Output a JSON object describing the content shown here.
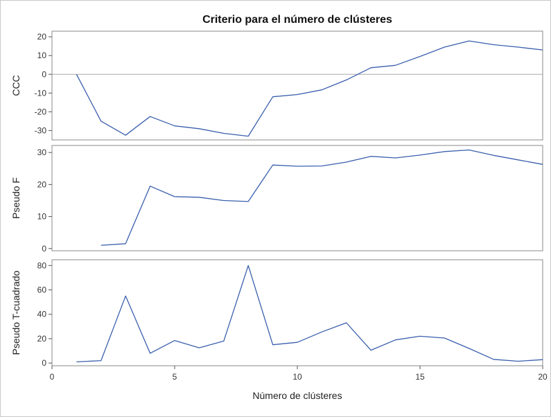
{
  "chart_data": {
    "type": "line",
    "title": "Criterio para el número de clústeres",
    "xlabel": "Número de clústeres",
    "xlim": [
      0,
      20
    ],
    "xticks": [
      0,
      5,
      10,
      15,
      20
    ],
    "line_color": "#3A5FAD",
    "panels": [
      {
        "ylabel": "CCC",
        "ylim": [
          -35,
          23
        ],
        "yticks": [
          20,
          10,
          0,
          -10,
          -20,
          -30
        ],
        "reference_line": 0,
        "x": [
          1,
          2,
          3,
          4,
          5,
          6,
          7,
          8,
          9,
          10,
          11,
          12,
          13,
          14,
          15,
          16,
          17,
          18,
          19,
          20
        ],
        "values": [
          0,
          -25,
          -32.5,
          -22.5,
          -27.5,
          -29,
          -31.5,
          -33,
          -12,
          -10.8,
          -8.3,
          -3,
          3.5,
          4.8,
          9.5,
          14.5,
          17.8,
          15.8,
          14.5,
          13
        ]
      },
      {
        "ylabel": "Pseudo F",
        "ylim": [
          -0.7,
          32.2
        ],
        "yticks": [
          30,
          20,
          10,
          0
        ],
        "x": [
          2,
          3,
          4,
          5,
          6,
          7,
          8,
          9,
          10,
          11,
          12,
          13,
          14,
          15,
          16,
          17,
          18,
          19,
          20
        ],
        "values": [
          1,
          1.5,
          19.5,
          16.2,
          16,
          15,
          14.7,
          26.1,
          25.7,
          25.8,
          27,
          28.8,
          28.3,
          29.2,
          30.3,
          30.8,
          29.1,
          27.7,
          26.3
        ]
      },
      {
        "ylabel": "Pseudo T-cuadrado",
        "ylim": [
          -2.2,
          84.7
        ],
        "yticks": [
          80,
          60,
          40,
          20,
          0
        ],
        "x": [
          1,
          2,
          3,
          4,
          5,
          6,
          7,
          8,
          9,
          10,
          11,
          12,
          13,
          14,
          15,
          16,
          17,
          18,
          19,
          20
        ],
        "values": [
          1,
          2,
          55,
          8,
          18.5,
          12.5,
          18,
          80,
          15,
          17,
          25.5,
          33,
          10.5,
          19,
          22,
          20.5,
          12,
          3,
          1.5,
          2.8
        ]
      }
    ]
  }
}
